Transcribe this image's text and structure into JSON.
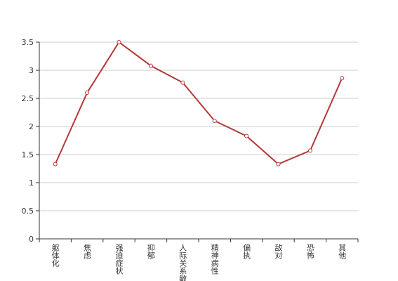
{
  "chart_data": {
    "type": "line",
    "categories": [
      "躯体化",
      "焦虑",
      "强迫症状",
      "抑郁",
      "人际关系敏感",
      "精神病性",
      "偏执",
      "敌对",
      "恐怖",
      "其他"
    ],
    "series": [
      {
        "name": null,
        "color": "#b5373a",
        "values": [
          1.33,
          2.6,
          3.5,
          3.08,
          2.78,
          2.1,
          1.83,
          1.33,
          1.57,
          2.86
        ]
      }
    ],
    "ylim": [
      0,
      3.5
    ],
    "yticks": [
      0,
      0.5,
      1,
      1.5,
      2,
      2.5,
      3,
      3.5
    ],
    "grid": true
  }
}
